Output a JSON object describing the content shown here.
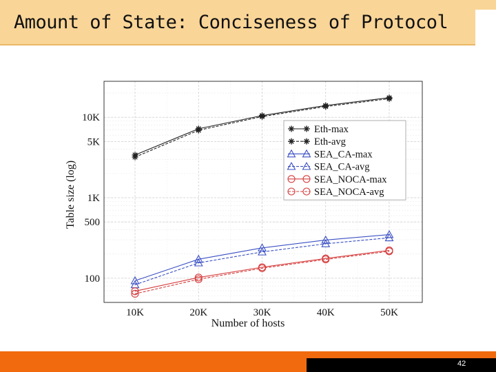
{
  "slide": {
    "title": "Amount of State: Conciseness of Protocol",
    "page_number": "42"
  },
  "colors": {
    "title_bar": "#f9d597",
    "footer_orange": "#f26a0e",
    "footer_black": "#000000",
    "eth": "#222222",
    "sea_ca": "#3a4fc4",
    "sea_noca": "#d63b3b"
  },
  "chart_data": {
    "type": "line",
    "title": "",
    "xlabel": "Number of hosts",
    "ylabel": "Table size (log)",
    "y_scale": "log",
    "ylim": [
      50,
      28000
    ],
    "grid": true,
    "legend_position": "center-right",
    "x": [
      "10K",
      "20K",
      "30K",
      "40K",
      "50K"
    ],
    "y_ticks": [
      {
        "value": 100,
        "label": "100"
      },
      {
        "value": 500,
        "label": "500"
      },
      {
        "value": 1000,
        "label": "1K"
      },
      {
        "value": 5000,
        "label": "5K"
      },
      {
        "value": 10000,
        "label": "10K"
      }
    ],
    "series": [
      {
        "name": "Eth-max",
        "values": [
          3400,
          7200,
          10500,
          14000,
          17500
        ],
        "color": "#222222",
        "marker": "star",
        "dash": "solid"
      },
      {
        "name": "Eth-avg",
        "values": [
          3200,
          6900,
          10200,
          13600,
          17000
        ],
        "color": "#222222",
        "marker": "star",
        "dash": "dashed"
      },
      {
        "name": "SEA_CA-max",
        "values": [
          93,
          172,
          238,
          298,
          348
        ],
        "color": "#3a4fc4",
        "marker": "triangle",
        "dash": "solid"
      },
      {
        "name": "SEA_CA-avg",
        "values": [
          83,
          155,
          212,
          268,
          318
        ],
        "color": "#3a4fc4",
        "marker": "triangle",
        "dash": "dashed"
      },
      {
        "name": "SEA_NOCA-max",
        "values": [
          69,
          102,
          137,
          176,
          222
        ],
        "color": "#d63b3b",
        "marker": "circle",
        "dash": "solid"
      },
      {
        "name": "SEA_NOCA-avg",
        "values": [
          64,
          97,
          133,
          171,
          216
        ],
        "color": "#d63b3b",
        "marker": "circle",
        "dash": "dashed"
      }
    ]
  }
}
